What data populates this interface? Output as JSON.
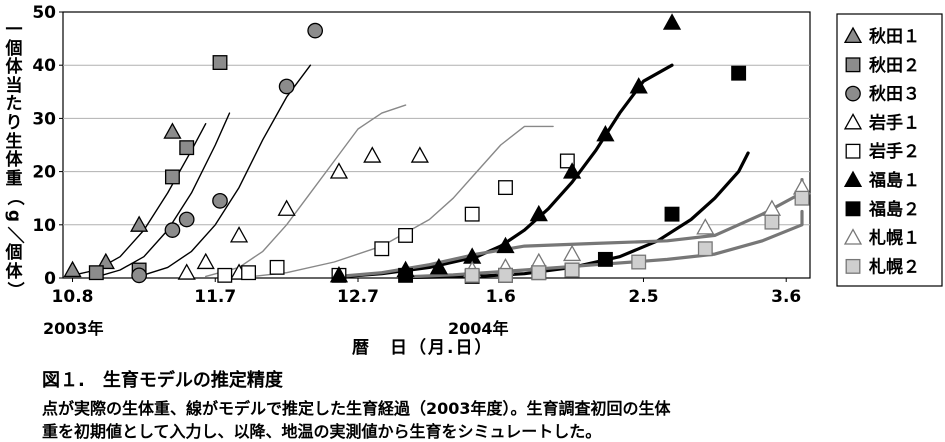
{
  "chart_data": {
    "type": "scatter",
    "ylabel": "一個体当たり生体重（g／個体）",
    "xlabel": "暦　日（月.日）",
    "ylim": [
      0,
      50
    ],
    "yticks": [
      "0",
      "10",
      "20",
      "30",
      "40",
      "50"
    ],
    "xticks": [
      "10.8",
      "11.7",
      "12.7",
      "1.6",
      "2.5",
      "3.6"
    ],
    "xtick_values": [
      0,
      30,
      60,
      90,
      120,
      150
    ],
    "xlim": [
      -2,
      155
    ],
    "year_labels": [
      "2003年",
      "2004年"
    ],
    "grid": "horizontal",
    "legend_position": "right",
    "series": [
      {
        "name": "秋田１",
        "marker": "triangle-gray",
        "points": [
          [
            0,
            1.5
          ],
          [
            7,
            3
          ],
          [
            14,
            10
          ],
          [
            21,
            27.5
          ]
        ]
      },
      {
        "name": "秋田２",
        "marker": "square-gray",
        "points": [
          [
            5,
            1
          ],
          [
            14,
            1.5
          ],
          [
            21,
            19
          ],
          [
            24,
            24.5
          ],
          [
            31,
            40.5
          ]
        ]
      },
      {
        "name": "秋田３",
        "marker": "circle-gray",
        "points": [
          [
            14,
            0.5
          ],
          [
            21,
            9
          ],
          [
            24,
            11
          ],
          [
            31,
            14.5
          ],
          [
            45,
            36
          ],
          [
            51,
            46.5
          ]
        ]
      },
      {
        "name": "岩手１",
        "marker": "triangle-open",
        "points": [
          [
            24,
            1
          ],
          [
            28,
            3
          ],
          [
            35,
            1
          ],
          [
            35,
            8
          ],
          [
            45,
            13
          ],
          [
            56,
            20
          ],
          [
            63,
            23
          ],
          [
            73,
            23
          ]
        ]
      },
      {
        "name": "岩手２",
        "marker": "square-open",
        "points": [
          [
            32,
            0.5
          ],
          [
            37,
            1
          ],
          [
            43,
            2
          ],
          [
            56,
            0.5
          ],
          [
            65,
            5.5
          ],
          [
            70,
            8
          ],
          [
            84,
            12
          ],
          [
            91,
            17
          ],
          [
            104,
            22
          ]
        ]
      },
      {
        "name": "福島１",
        "marker": "triangle-black",
        "points": [
          [
            56,
            0.5
          ],
          [
            70,
            1.5
          ],
          [
            77,
            2
          ],
          [
            84,
            4
          ],
          [
            91,
            6
          ],
          [
            98,
            12
          ],
          [
            105,
            20
          ],
          [
            112,
            27
          ],
          [
            119,
            36
          ],
          [
            126,
            48
          ]
        ]
      },
      {
        "name": "福島２",
        "marker": "square-black",
        "points": [
          [
            70,
            0.5
          ],
          [
            84,
            0.3
          ],
          [
            91,
            0.5
          ],
          [
            98,
            1
          ],
          [
            105,
            1.5
          ],
          [
            112,
            3.5
          ],
          [
            126,
            12
          ],
          [
            140,
            38.5
          ]
        ]
      },
      {
        "name": "札幌１",
        "marker": "triangle-lightopen",
        "points": [
          [
            84,
            1.5
          ],
          [
            91,
            2
          ],
          [
            98,
            3
          ],
          [
            105,
            4.5
          ],
          [
            133,
            9.5
          ],
          [
            147,
            13
          ],
          [
            161,
            17
          ]
        ]
      },
      {
        "name": "札幌２",
        "marker": "square-lightgray",
        "points": [
          [
            84,
            0.5
          ],
          [
            91,
            0.5
          ],
          [
            98,
            1
          ],
          [
            105,
            1.5
          ],
          [
            119,
            3
          ],
          [
            133,
            5.5
          ],
          [
            147,
            10.5
          ],
          [
            161,
            15
          ]
        ]
      }
    ],
    "curves": [
      {
        "style": "thin-black",
        "points": [
          [
            0,
            0.5
          ],
          [
            5,
            1.5
          ],
          [
            10,
            4
          ],
          [
            15,
            9
          ],
          [
            20,
            16
          ],
          [
            25,
            24
          ],
          [
            28,
            29
          ]
        ]
      },
      {
        "style": "thin-black",
        "points": [
          [
            5,
            0.2
          ],
          [
            10,
            1.5
          ],
          [
            15,
            4
          ],
          [
            20,
            9
          ],
          [
            25,
            16
          ],
          [
            30,
            25
          ],
          [
            33,
            31
          ]
        ]
      },
      {
        "style": "thin-black",
        "points": [
          [
            14,
            0.3
          ],
          [
            20,
            2
          ],
          [
            25,
            5
          ],
          [
            30,
            10
          ],
          [
            35,
            17
          ],
          [
            40,
            26
          ],
          [
            45,
            34
          ],
          [
            50,
            40
          ]
        ]
      },
      {
        "style": "thin-gray",
        "points": [
          [
            28,
            0.3
          ],
          [
            35,
            2
          ],
          [
            40,
            5
          ],
          [
            45,
            10
          ],
          [
            50,
            16
          ],
          [
            55,
            22
          ],
          [
            60,
            28
          ],
          [
            65,
            31
          ],
          [
            70,
            32.5
          ]
        ]
      },
      {
        "style": "thin-gray",
        "points": [
          [
            37,
            0.2
          ],
          [
            45,
            1
          ],
          [
            55,
            3
          ],
          [
            65,
            6
          ],
          [
            75,
            11
          ],
          [
            80,
            15
          ],
          [
            85,
            20
          ],
          [
            90,
            25
          ],
          [
            95,
            28.5
          ],
          [
            101,
            28.5
          ]
        ]
      },
      {
        "style": "thick-black",
        "points": [
          [
            56,
            0.2
          ],
          [
            65,
            0.8
          ],
          [
            75,
            2
          ],
          [
            85,
            4
          ],
          [
            90,
            6
          ],
          [
            95,
            9
          ],
          [
            100,
            13
          ],
          [
            105,
            18
          ],
          [
            110,
            24
          ],
          [
            115,
            31
          ],
          [
            120,
            37
          ],
          [
            126,
            40
          ]
        ]
      },
      {
        "style": "thick-black",
        "points": [
          [
            70,
            0.1
          ],
          [
            85,
            0.3
          ],
          [
            95,
            0.8
          ],
          [
            105,
            2
          ],
          [
            115,
            4
          ],
          [
            123,
            7
          ],
          [
            130,
            11
          ],
          [
            135,
            15
          ],
          [
            140,
            20
          ],
          [
            142,
            23.5
          ]
        ]
      },
      {
        "style": "thick-gray",
        "points": [
          [
            56,
            0.3
          ],
          [
            65,
            1
          ],
          [
            75,
            2.5
          ],
          [
            85,
            4.5
          ],
          [
            95,
            6
          ],
          [
            110,
            6.5
          ],
          [
            125,
            7
          ],
          [
            135,
            8
          ],
          [
            145,
            12
          ],
          [
            155,
            16
          ],
          [
            160,
            18.5
          ]
        ]
      },
      {
        "style": "thick-gray",
        "points": [
          [
            70,
            0.2
          ],
          [
            80,
            0.6
          ],
          [
            95,
            1.5
          ],
          [
            110,
            2.5
          ],
          [
            125,
            3.5
          ],
          [
            135,
            4.5
          ],
          [
            145,
            7
          ],
          [
            155,
            10
          ],
          [
            160,
            12.5
          ]
        ]
      }
    ]
  },
  "y_axis_title_chars": [
    "一",
    "個",
    "体",
    "当",
    "た",
    "り",
    "生",
    "体",
    "重",
    "（",
    "g",
    "／",
    "個",
    "体",
    "）"
  ],
  "caption": {
    "title": "図１.　生育モデルの推定精度",
    "line1": "点が実際の生体重、線がモデルで推定した生育経過（2003年度）。生育調査初回の生体",
    "line2": "重を初期値として入力し、以降、地温の実測値から生育をシミュレートした。"
  }
}
